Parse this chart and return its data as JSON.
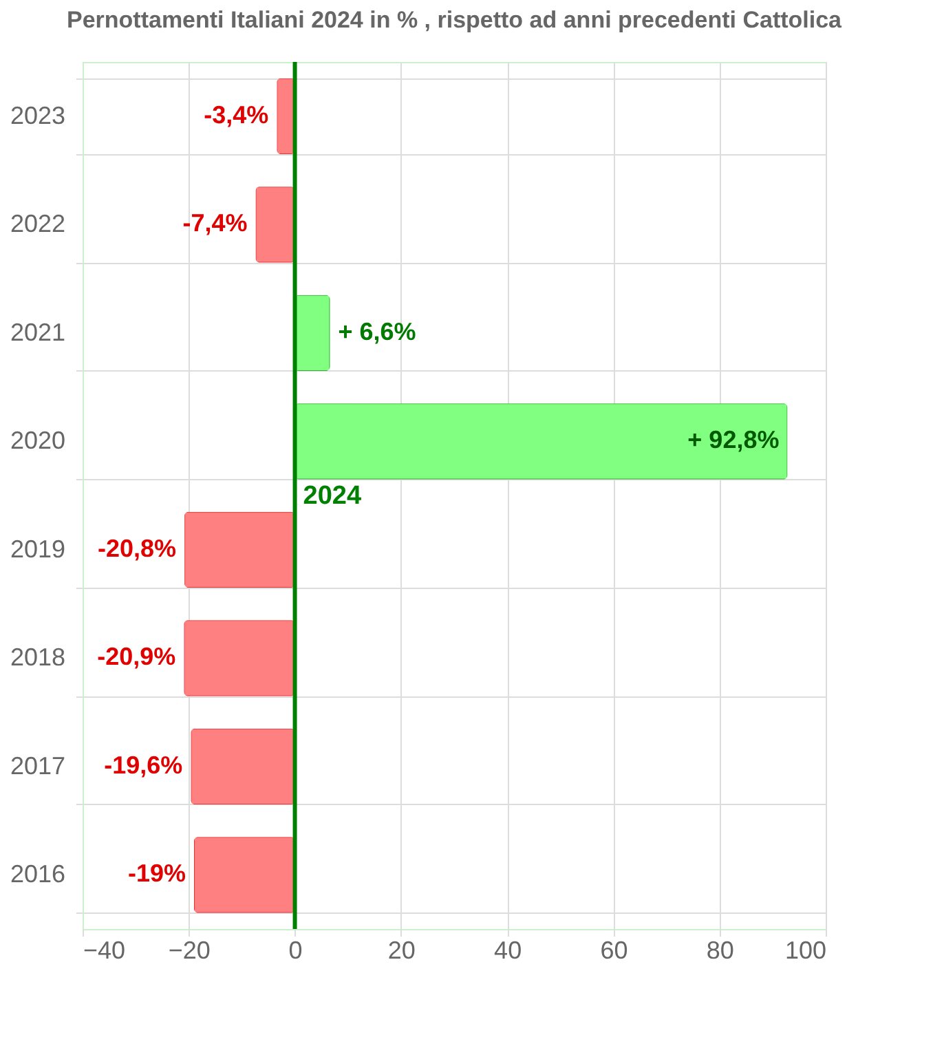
{
  "chart_data": {
    "type": "bar",
    "orientation": "horizontal",
    "title": "Pernottamenti Italiani 2024 in % , rispetto ad anni precedenti Cattolica",
    "categories": [
      "2023",
      "2022",
      "2021",
      "2020",
      "2019",
      "2018",
      "2017",
      "2016"
    ],
    "values": [
      -3.4,
      -7.4,
      6.6,
      92.8,
      -20.8,
      -20.9,
      -19.6,
      -19
    ],
    "colors": [
      "#ff8080",
      "#ff8080",
      "#80ff80",
      "#80ff80",
      "#ff8080",
      "#ff8080",
      "#ff8080",
      "#ff8080"
    ],
    "value_labels": [
      "-3,4%",
      "-7,4%",
      "+ 6,6%",
      "+ 92,8%",
      "-20,8%",
      "-20,9%",
      "-19,6%",
      "-19%"
    ],
    "xlim": [
      -40,
      100
    ],
    "xticks": [
      -40,
      -20,
      0,
      20,
      40,
      60,
      80,
      100
    ],
    "ref_lines": [
      {
        "axis": "x",
        "value": 0,
        "color": "#008000"
      }
    ],
    "annotations": [
      "2024"
    ],
    "grid": true
  }
}
